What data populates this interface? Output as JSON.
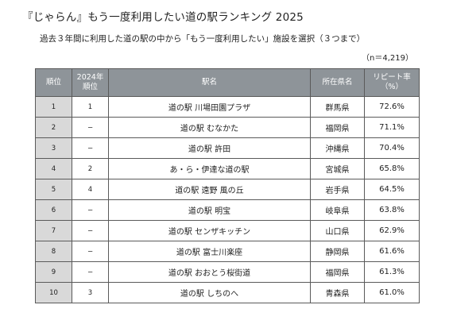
{
  "title": "『じゃらん』もう一度利用したい道の駅ランキング 2025",
  "subtitle": "過去３年間に利用した道の駅の中から「もう一度利用したい」施設を選択（３つまで）",
  "sample_size": "（n＝4,219）",
  "table": {
    "headers": {
      "rank": "順位",
      "prev_line1": "2024年",
      "prev_line2": "順位",
      "name": "駅名",
      "pref": "所在県名",
      "rate_line1": "リピート率",
      "rate_line2": "（%）"
    },
    "rows": [
      {
        "rank": "1",
        "prev": "1",
        "name": "道の駅 川場田園プラザ",
        "pref": "群馬県",
        "rate": "72.6%"
      },
      {
        "rank": "2",
        "prev": "−",
        "name": "道の駅 むなかた",
        "pref": "福岡県",
        "rate": "71.1%"
      },
      {
        "rank": "3",
        "prev": "−",
        "name": "道の駅 許田",
        "pref": "沖縄県",
        "rate": "70.4%"
      },
      {
        "rank": "4",
        "prev": "2",
        "name": "あ・ら・伊達な道の駅",
        "pref": "宮城県",
        "rate": "65.8%"
      },
      {
        "rank": "5",
        "prev": "4",
        "name": "道の駅 遠野 風の丘",
        "pref": "岩手県",
        "rate": "64.5%"
      },
      {
        "rank": "6",
        "prev": "−",
        "name": "道の駅 明宝",
        "pref": "岐阜県",
        "rate": "63.8%"
      },
      {
        "rank": "7",
        "prev": "−",
        "name": "道の駅 センザキッチン",
        "pref": "山口県",
        "rate": "62.9%"
      },
      {
        "rank": "8",
        "prev": "−",
        "name": "道の駅 富士川楽座",
        "pref": "静岡県",
        "rate": "61.6%"
      },
      {
        "rank": "9",
        "prev": "−",
        "name": "道の駅 おおとう桜街道",
        "pref": "福岡県",
        "rate": "61.3%"
      },
      {
        "rank": "10",
        "prev": "3",
        "name": "道の駅 しちのへ",
        "pref": "青森県",
        "rate": "61.0%"
      }
    ]
  }
}
